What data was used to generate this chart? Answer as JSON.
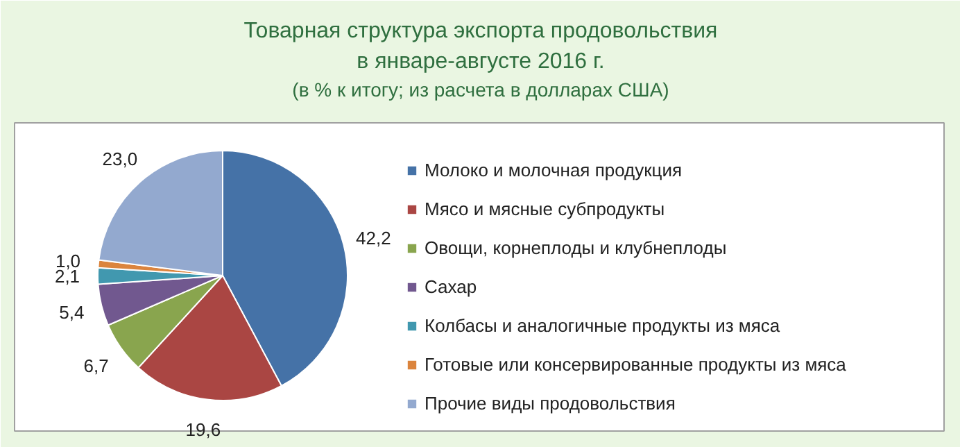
{
  "chart_data": {
    "type": "pie",
    "title": "Товарная структура экспорта продовольствия\nв январе-августе 2016 г.",
    "subtitle": "(в % к итогу; из расчета в долларах США)",
    "categories": [
      "Молоко и молочная продукция",
      "Мясо и мясные субпродукты",
      "Овощи, корнеплоды и клубнеплоды",
      "Сахар",
      "Колбасы и аналогичные продукты из мяса",
      "Готовые или консервированные продукты из мяса",
      "Прочие виды продовольствия"
    ],
    "values": [
      42.2,
      19.6,
      6.7,
      5.4,
      2.1,
      1.0,
      23.0
    ],
    "value_labels": [
      "42,2",
      "19,6",
      "6,7",
      "5,4",
      "2,1",
      "1,0",
      "23,0"
    ],
    "colors": [
      "#4572a7",
      "#aa4643",
      "#89a54e",
      "#71588f",
      "#4198af",
      "#db843d",
      "#93a9cf"
    ],
    "legend": "right"
  }
}
